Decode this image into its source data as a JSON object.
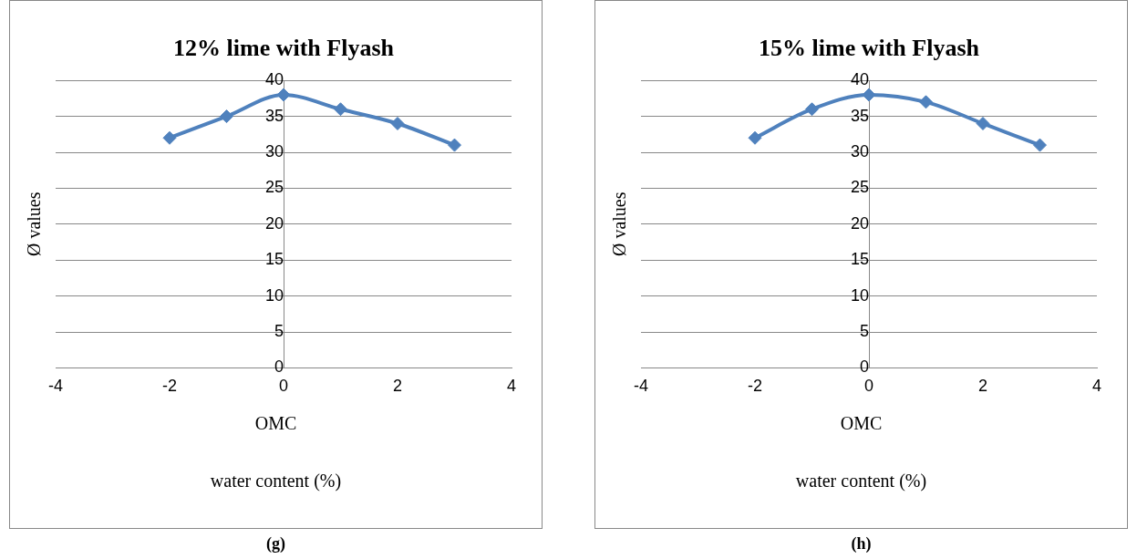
{
  "chart_data": [
    {
      "type": "line",
      "title": "12% lime with Flyash",
      "xlabel": "water content (%)",
      "ylabel": "Ø values",
      "x": [
        -2,
        -1,
        0,
        1,
        2,
        3
      ],
      "series": [
        {
          "color": "#4f81bd",
          "values": [
            32,
            35,
            38,
            36,
            34,
            31
          ]
        }
      ],
      "xlim": [
        -4,
        4
      ],
      "xticks": [
        -4,
        -2,
        0,
        2,
        4
      ],
      "ylim": [
        0,
        40
      ],
      "yticks": [
        0,
        5,
        10,
        15,
        20,
        25,
        30,
        35,
        40
      ],
      "grid": "y",
      "legend": false,
      "marker": "diamond",
      "line_style": "solid",
      "annotations": [
        "OMC",
        "(g)"
      ]
    },
    {
      "type": "line",
      "title": "15% lime with Flyash",
      "xlabel": "water content (%)",
      "ylabel": "Ø values",
      "x": [
        -2,
        -1,
        0,
        1,
        2,
        3
      ],
      "series": [
        {
          "color": "#4f81bd",
          "values": [
            32,
            36,
            38,
            37,
            34,
            31
          ]
        }
      ],
      "xlim": [
        -4,
        4
      ],
      "xticks": [
        -4,
        -2,
        0,
        2,
        4
      ],
      "ylim": [
        0,
        40
      ],
      "yticks": [
        0,
        5,
        10,
        15,
        20,
        25,
        30,
        35,
        40
      ],
      "grid": "y",
      "legend": false,
      "marker": "diamond",
      "line_style": "solid",
      "annotations": [
        "OMC",
        "(h)"
      ]
    }
  ]
}
